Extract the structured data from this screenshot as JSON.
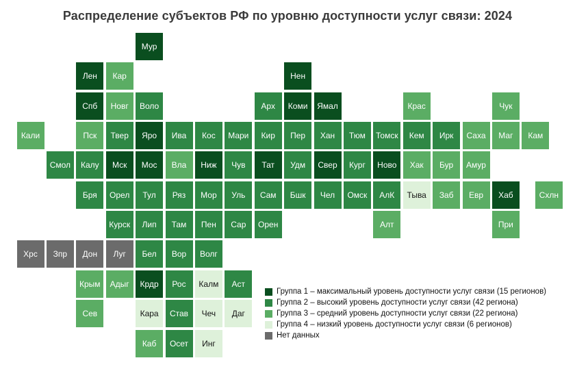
{
  "title": "Распределение субъектов РФ по уровню доступности услуг связи: 2024",
  "colors": {
    "background": "#ffffff",
    "title_text": "#3a3a3a",
    "tile_text_light": "#ffffff",
    "tile_text_dark": "#141414",
    "group1": "#0a4e1f",
    "group2": "#2e8745",
    "group3": "#5bad64",
    "group4": "#def1da",
    "nodata": "#6b6b6b"
  },
  "chart_data": {
    "type": "heatmap",
    "subtype": "tile-cartogram",
    "title": "Распределение субъектов РФ по уровню доступности услуг связи: 2024",
    "legend_position": "bottom-right",
    "groups": [
      {
        "key": "group1",
        "color": "#0a4e1f",
        "label": "Группа 1 – максимальный уровень доступности услуг связи (15 регионов)",
        "regions_count": 15
      },
      {
        "key": "group2",
        "color": "#2e8745",
        "label": "Группа 2 – высокий уровень доступности услуг связи (42 региона)",
        "regions_count": 42
      },
      {
        "key": "group3",
        "color": "#5bad64",
        "label": "Группа 3 – средний уровень доступности услуг связи (22 региона)",
        "regions_count": 22
      },
      {
        "key": "group4",
        "color": "#def1da",
        "label": "Группа 4 – низкий уровень доступности услуг связи (6 регионов)",
        "regions_count": 6
      },
      {
        "key": "nodata",
        "color": "#6b6b6b",
        "label": "Нет данных",
        "regions_count": null
      }
    ],
    "tiles": [
      {
        "label": "Мур",
        "col": 4,
        "row": 0,
        "group": "group1"
      },
      {
        "label": "Лен",
        "col": 2,
        "row": 1,
        "group": "group1"
      },
      {
        "label": "Кар",
        "col": 3,
        "row": 1,
        "group": "group3"
      },
      {
        "label": "Нен",
        "col": 9,
        "row": 1,
        "group": "group1"
      },
      {
        "label": "Спб",
        "col": 2,
        "row": 2,
        "group": "group1"
      },
      {
        "label": "Новг",
        "col": 3,
        "row": 2,
        "group": "group3"
      },
      {
        "label": "Воло",
        "col": 4,
        "row": 2,
        "group": "group2"
      },
      {
        "label": "Арх",
        "col": 8,
        "row": 2,
        "group": "group2"
      },
      {
        "label": "Коми",
        "col": 9,
        "row": 2,
        "group": "group1"
      },
      {
        "label": "Ямал",
        "col": 10,
        "row": 2,
        "group": "group1"
      },
      {
        "label": "Крас",
        "col": 13,
        "row": 2,
        "group": "group3"
      },
      {
        "label": "Чук",
        "col": 16,
        "row": 2,
        "group": "group3"
      },
      {
        "label": "Кали",
        "col": 0,
        "row": 3,
        "group": "group3"
      },
      {
        "label": "Пск",
        "col": 2,
        "row": 3,
        "group": "group3"
      },
      {
        "label": "Твер",
        "col": 3,
        "row": 3,
        "group": "group2"
      },
      {
        "label": "Яро",
        "col": 4,
        "row": 3,
        "group": "group1"
      },
      {
        "label": "Ива",
        "col": 5,
        "row": 3,
        "group": "group2"
      },
      {
        "label": "Кос",
        "col": 6,
        "row": 3,
        "group": "group2"
      },
      {
        "label": "Мари",
        "col": 7,
        "row": 3,
        "group": "group2"
      },
      {
        "label": "Кир",
        "col": 8,
        "row": 3,
        "group": "group2"
      },
      {
        "label": "Пер",
        "col": 9,
        "row": 3,
        "group": "group2"
      },
      {
        "label": "Хан",
        "col": 10,
        "row": 3,
        "group": "group2"
      },
      {
        "label": "Тюм",
        "col": 11,
        "row": 3,
        "group": "group2"
      },
      {
        "label": "Томск",
        "col": 12,
        "row": 3,
        "group": "group2"
      },
      {
        "label": "Кем",
        "col": 13,
        "row": 3,
        "group": "group2"
      },
      {
        "label": "Ирк",
        "col": 14,
        "row": 3,
        "group": "group2"
      },
      {
        "label": "Саха",
        "col": 15,
        "row": 3,
        "group": "group3"
      },
      {
        "label": "Маг",
        "col": 16,
        "row": 3,
        "group": "group3"
      },
      {
        "label": "Кам",
        "col": 17,
        "row": 3,
        "group": "group3"
      },
      {
        "label": "Смол",
        "col": 1,
        "row": 4,
        "group": "group2"
      },
      {
        "label": "Калу",
        "col": 2,
        "row": 4,
        "group": "group2"
      },
      {
        "label": "Мск",
        "col": 3,
        "row": 4,
        "group": "group1"
      },
      {
        "label": "Мос",
        "col": 4,
        "row": 4,
        "group": "group1"
      },
      {
        "label": "Вла",
        "col": 5,
        "row": 4,
        "group": "group3"
      },
      {
        "label": "Ниж",
        "col": 6,
        "row": 4,
        "group": "group1"
      },
      {
        "label": "Чув",
        "col": 7,
        "row": 4,
        "group": "group2"
      },
      {
        "label": "Тат",
        "col": 8,
        "row": 4,
        "group": "group1"
      },
      {
        "label": "Удм",
        "col": 9,
        "row": 4,
        "group": "group2"
      },
      {
        "label": "Свер",
        "col": 10,
        "row": 4,
        "group": "group1"
      },
      {
        "label": "Кург",
        "col": 11,
        "row": 4,
        "group": "group2"
      },
      {
        "label": "Ново",
        "col": 12,
        "row": 4,
        "group": "group1"
      },
      {
        "label": "Хак",
        "col": 13,
        "row": 4,
        "group": "group3"
      },
      {
        "label": "Бур",
        "col": 14,
        "row": 4,
        "group": "group3"
      },
      {
        "label": "Амур",
        "col": 15,
        "row": 4,
        "group": "group3"
      },
      {
        "label": "Бря",
        "col": 2,
        "row": 5,
        "group": "group2"
      },
      {
        "label": "Орел",
        "col": 3,
        "row": 5,
        "group": "group2"
      },
      {
        "label": "Тул",
        "col": 4,
        "row": 5,
        "group": "group2"
      },
      {
        "label": "Ряз",
        "col": 5,
        "row": 5,
        "group": "group2"
      },
      {
        "label": "Мор",
        "col": 6,
        "row": 5,
        "group": "group2"
      },
      {
        "label": "Уль",
        "col": 7,
        "row": 5,
        "group": "group2"
      },
      {
        "label": "Сам",
        "col": 8,
        "row": 5,
        "group": "group2"
      },
      {
        "label": "Бшк",
        "col": 9,
        "row": 5,
        "group": "group2"
      },
      {
        "label": "Чел",
        "col": 10,
        "row": 5,
        "group": "group2"
      },
      {
        "label": "Омск",
        "col": 11,
        "row": 5,
        "group": "group2"
      },
      {
        "label": "АлК",
        "col": 12,
        "row": 5,
        "group": "group2"
      },
      {
        "label": "Тыва",
        "col": 13,
        "row": 5,
        "group": "group4"
      },
      {
        "label": "Заб",
        "col": 14,
        "row": 5,
        "group": "group3"
      },
      {
        "label": "Евр",
        "col": 15,
        "row": 5,
        "group": "group3"
      },
      {
        "label": "Хаб",
        "col": 16,
        "row": 5,
        "group": "group1"
      },
      {
        "label": "Схлн",
        "col": 17.45,
        "row": 5,
        "group": "group3"
      },
      {
        "label": "Курск",
        "col": 3,
        "row": 6,
        "group": "group2"
      },
      {
        "label": "Лип",
        "col": 4,
        "row": 6,
        "group": "group2"
      },
      {
        "label": "Там",
        "col": 5,
        "row": 6,
        "group": "group2"
      },
      {
        "label": "Пен",
        "col": 6,
        "row": 6,
        "group": "group2"
      },
      {
        "label": "Сар",
        "col": 7,
        "row": 6,
        "group": "group2"
      },
      {
        "label": "Орен",
        "col": 8,
        "row": 6,
        "group": "group2"
      },
      {
        "label": "Алт",
        "col": 12,
        "row": 6,
        "group": "group3"
      },
      {
        "label": "При",
        "col": 16,
        "row": 6,
        "group": "group3"
      },
      {
        "label": "Хрс",
        "col": 0,
        "row": 7,
        "group": "nodata"
      },
      {
        "label": "Зпр",
        "col": 1,
        "row": 7,
        "group": "nodata"
      },
      {
        "label": "Дон",
        "col": 2,
        "row": 7,
        "group": "nodata"
      },
      {
        "label": "Луг",
        "col": 3,
        "row": 7,
        "group": "nodata"
      },
      {
        "label": "Бел",
        "col": 4,
        "row": 7,
        "group": "group2"
      },
      {
        "label": "Вор",
        "col": 5,
        "row": 7,
        "group": "group2"
      },
      {
        "label": "Волг",
        "col": 6,
        "row": 7,
        "group": "group2"
      },
      {
        "label": "Крым",
        "col": 2,
        "row": 8,
        "group": "group3"
      },
      {
        "label": "Адыг",
        "col": 3,
        "row": 8,
        "group": "group3"
      },
      {
        "label": "Крдр",
        "col": 4,
        "row": 8,
        "group": "group1"
      },
      {
        "label": "Рос",
        "col": 5,
        "row": 8,
        "group": "group2"
      },
      {
        "label": "Калм",
        "col": 6,
        "row": 8,
        "group": "group4"
      },
      {
        "label": "Аст",
        "col": 7,
        "row": 8,
        "group": "group2"
      },
      {
        "label": "Сев",
        "col": 2,
        "row": 9,
        "group": "group3"
      },
      {
        "label": "Кара",
        "col": 4,
        "row": 9,
        "group": "group4"
      },
      {
        "label": "Став",
        "col": 5,
        "row": 9,
        "group": "group2"
      },
      {
        "label": "Чеч",
        "col": 6,
        "row": 9,
        "group": "group4"
      },
      {
        "label": "Даг",
        "col": 7,
        "row": 9,
        "group": "group4"
      },
      {
        "label": "Каб",
        "col": 4,
        "row": 10,
        "group": "group3"
      },
      {
        "label": "Осет",
        "col": 5,
        "row": 10,
        "group": "group2"
      },
      {
        "label": "Инг",
        "col": 6,
        "row": 10,
        "group": "group4"
      }
    ]
  }
}
